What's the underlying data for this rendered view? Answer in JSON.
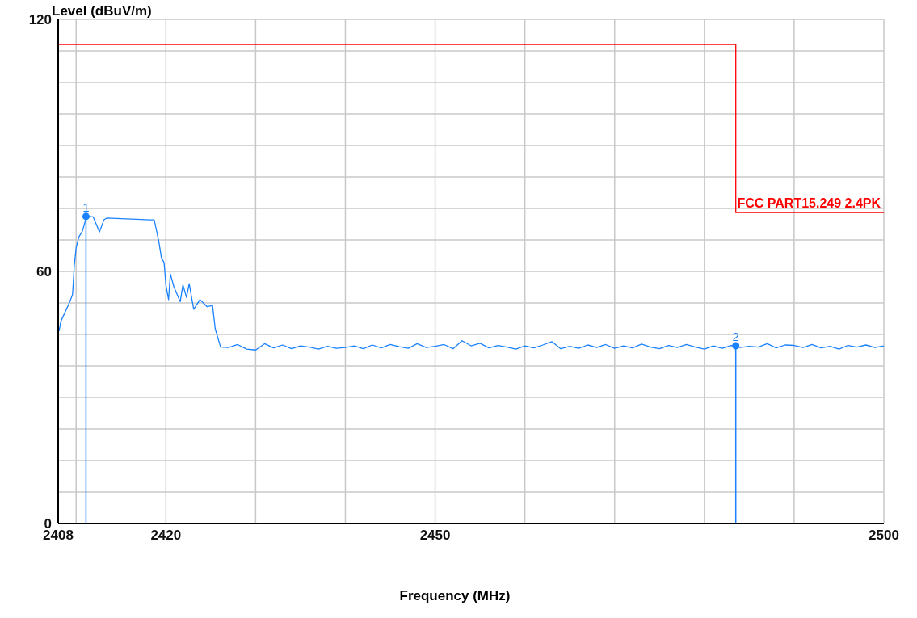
{
  "chart_data": {
    "type": "line",
    "xlabel": "Frequency (MHz)",
    "ylabel": "Level (dBuV/m)",
    "xlim": [
      2408,
      2500
    ],
    "ylim": [
      0,
      120
    ],
    "xticks": [
      2408,
      {
        "value": 2410,
        "label": null
      },
      2420,
      {
        "value": 2430,
        "label": null
      },
      {
        "value": 2440,
        "label": null
      },
      2450,
      {
        "value": 2460,
        "label": null
      },
      {
        "value": 2470,
        "label": null
      },
      {
        "value": 2480,
        "label": null
      },
      {
        "value": 2490,
        "label": null
      },
      2500
    ],
    "yticks": [
      0,
      {
        "value": 7.5,
        "label": null
      },
      {
        "value": 15,
        "label": null
      },
      {
        "value": 22.5,
        "label": null
      },
      {
        "value": 30,
        "label": null
      },
      {
        "value": 37.5,
        "label": null
      },
      {
        "value": 45,
        "label": null
      },
      {
        "value": 52.5,
        "label": null
      },
      60,
      {
        "value": 67.5,
        "label": null
      },
      {
        "value": 75,
        "label": null
      },
      {
        "value": 82.5,
        "label": null
      },
      {
        "value": 90,
        "label": null
      },
      {
        "value": 97.5,
        "label": null
      },
      {
        "value": 105,
        "label": null
      },
      {
        "value": 112.5,
        "label": null
      },
      120
    ],
    "grid": true,
    "legend": false,
    "line_style": "solid",
    "series": [
      {
        "type": "line",
        "color": "#1a82ff",
        "x": [
          2408.1,
          2408.3,
          2409.3,
          2409.6,
          2409.8,
          2410.0,
          2410.3,
          2410.7,
          2411.1,
          2411.5,
          2411.9,
          2412.6,
          2413.1,
          2413.4,
          2418.3,
          2418.7,
          2419.2,
          2419.5,
          2419.8,
          2420.0,
          2420.3,
          2420.5,
          2420.9,
          2421.6,
          2421.9,
          2422.3,
          2422.6,
          2423.1,
          2423.8,
          2424.6,
          2425.2,
          2425.5,
          2426.1,
          2427,
          2428,
          2429,
          2430,
          2431,
          2432,
          2433,
          2434,
          2435,
          2436,
          2437,
          2438,
          2439,
          2440,
          2441,
          2442,
          2443,
          2444,
          2445,
          2446,
          2447,
          2448,
          2449,
          2450,
          2451,
          2452,
          2453,
          2454,
          2455,
          2456,
          2457,
          2458,
          2459,
          2460,
          2461,
          2462,
          2463,
          2464,
          2465,
          2466,
          2467,
          2468,
          2469,
          2470,
          2471,
          2472,
          2473,
          2474,
          2475,
          2476,
          2477,
          2478,
          2479,
          2480,
          2481,
          2482,
          2483,
          2484,
          2485,
          2486,
          2487,
          2488,
          2489,
          2490,
          2491,
          2492,
          2493,
          2494,
          2495,
          2496,
          2497,
          2498,
          2499,
          2500
        ],
        "values": [
          45.8,
          48.1,
          52.8,
          54.5,
          61.5,
          65.6,
          68.2,
          69.6,
          72.6,
          73.1,
          73.0,
          69.4,
          72.3,
          72.7,
          72.3,
          72.3,
          67.3,
          63.3,
          62.1,
          56.8,
          53.3,
          59.4,
          56.3,
          52.8,
          56.8,
          53.8,
          57.1,
          51.0,
          53.3,
          51.6,
          51.9,
          46.3,
          42.0,
          41.9,
          42.6,
          41.5,
          41.3,
          42.8,
          41.8,
          42.5,
          41.6,
          42.3,
          42.0,
          41.5,
          42.2,
          41.7,
          41.9,
          42.3,
          41.6,
          42.5,
          41.8,
          42.6,
          42.1,
          41.7,
          42.8,
          41.9,
          42.2,
          42.6,
          41.6,
          43.5,
          42.3,
          42.9,
          41.8,
          42.4,
          42.0,
          41.5,
          42.3,
          41.8,
          42.5,
          43.3,
          41.6,
          42.2,
          41.7,
          42.5,
          41.9,
          42.6,
          41.7,
          42.3,
          41.8,
          42.7,
          42.0,
          41.6,
          42.4,
          41.9,
          42.6,
          42.0,
          41.5,
          42.3,
          41.7,
          42.4,
          41.9,
          42.2,
          42.0,
          42.8,
          41.8,
          42.5,
          42.4,
          41.9,
          42.6,
          41.8,
          42.2,
          41.5,
          42.4,
          42.0,
          42.5,
          41.9,
          42.3
        ]
      },
      {
        "type": "step",
        "name": "FCC PART15.249 2.4PK",
        "color": "#ff0000",
        "x": [
          2408,
          2483.5,
          2500
        ],
        "values": [
          114,
          74,
          74
        ]
      },
      {
        "type": "lollipop",
        "color": "#1a82ff",
        "x": [
          2411.1,
          2483.5
        ],
        "values": [
          73.1,
          42.3
        ]
      }
    ],
    "annotations": [
      {
        "text": "1",
        "x": 2411.1,
        "y": 73.1
      },
      {
        "text": "2",
        "x": 2483.5,
        "y": 42.3
      }
    ]
  }
}
